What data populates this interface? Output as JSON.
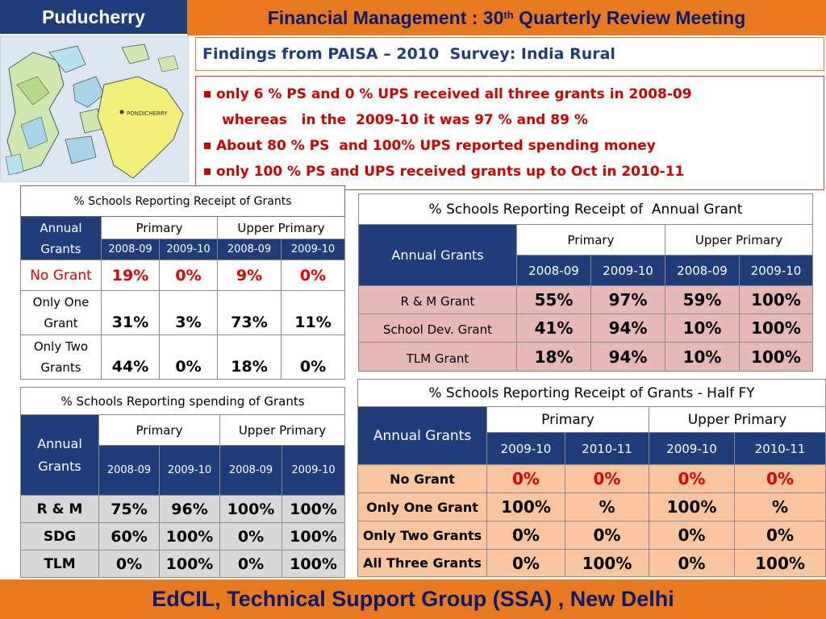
{
  "header": {
    "region": "Puducherry",
    "title_main": "Financial Management : 30",
    "title_sup": "th",
    "title_rest": " Quarterly Review Meeting"
  },
  "map": {
    "label": "PONDICHERRY"
  },
  "findings": "Findings from PAISA – 2010  Survey: India Rural",
  "bullets": {
    "b1": "only 6 % PS and 0 % UPS received all three grants in 2008-09",
    "b1_cont": "whereas   in the  2009-10 it was 97 % and 89 %",
    "b2": "About 80 % PS  and 100% UPS reported spending money",
    "b3": "only 100 % PS and UPS received grants up to Oct in 2010-11"
  },
  "table_receipt": {
    "caption": "% Schools Reporting Receipt of Grants",
    "col_label_1": "Annual",
    "col_label_2": "Grants",
    "groups": [
      "Primary",
      "Upper Primary"
    ],
    "years": [
      "2008-09",
      "2009-10",
      "2008-09",
      "2009-10"
    ],
    "rows": [
      {
        "label": "No Grant",
        "values": [
          "19%",
          "0%",
          "9%",
          "0%"
        ]
      },
      {
        "label_1": "Only One",
        "label_2": "Grant",
        "values": [
          "31%",
          "3%",
          "73%",
          "11%"
        ]
      },
      {
        "label_1": "Only Two",
        "label_2": "Grants",
        "values": [
          "44%",
          "0%",
          "18%",
          "0%"
        ]
      }
    ]
  },
  "table_annual": {
    "caption": "% Schools Reporting Receipt of  Annual Grant",
    "col_label": "Annual Grants",
    "groups": [
      "Primary",
      "Upper Primary"
    ],
    "years": [
      "2008-09",
      "2009-10",
      "2008-09",
      "2009-10"
    ],
    "rows": [
      {
        "label": "R & M Grant",
        "values": [
          "55%",
          "97%",
          "59%",
          "100%"
        ]
      },
      {
        "label": "School Dev. Grant",
        "values": [
          "41%",
          "94%",
          "10%",
          "100%"
        ]
      },
      {
        "label": "TLM Grant",
        "values": [
          "18%",
          "94%",
          "10%",
          "100%"
        ]
      }
    ]
  },
  "table_spending": {
    "caption": "% Schools Reporting spending of Grants",
    "col_label_1": "Annual",
    "col_label_2": "Grants",
    "groups": [
      "Primary",
      "Upper Primary"
    ],
    "years": [
      "2008-09",
      "2009-10",
      "2008-09",
      "2009-10"
    ],
    "rows": [
      {
        "label": "R & M",
        "values": [
          "75%",
          "96%",
          "100%",
          "100%"
        ]
      },
      {
        "label": "SDG",
        "values": [
          "60%",
          "100%",
          "0%",
          "100%"
        ]
      },
      {
        "label": "TLM",
        "values": [
          "0%",
          "100%",
          "0%",
          "100%"
        ]
      }
    ]
  },
  "table_halffy": {
    "caption": "% Schools Reporting Receipt of Grants - Half FY",
    "col_label": "Annual Grants",
    "groups": [
      "Primary",
      "Upper Primary"
    ],
    "years": [
      "2009-10",
      "2010-11",
      "2009-10",
      "2010-11"
    ],
    "rows": [
      {
        "label": "No Grant",
        "values": [
          "0%",
          "0%",
          "0%",
          "0%"
        ]
      },
      {
        "label": "Only One Grant",
        "values": [
          "100%",
          "%",
          "100%",
          "%"
        ]
      },
      {
        "label": "Only Two Grants",
        "values": [
          "0%",
          "0%",
          "0%",
          "0%"
        ]
      },
      {
        "label": "All Three Grants",
        "values": [
          "0%",
          "100%",
          "0%",
          "100%"
        ]
      }
    ]
  },
  "footer": "EdCIL, Technical Support Group (SSA) , New Delhi",
  "colors": {
    "navy": "#1f3d78",
    "orange": "#e8791e",
    "red_text": "#d00000",
    "pink_rows": "#e6b9b8",
    "peach_rows": "#f9c59e",
    "gray_rows": "#d9d9d9"
  }
}
